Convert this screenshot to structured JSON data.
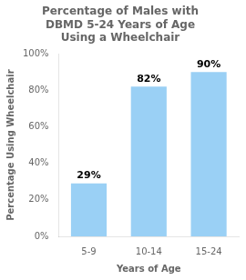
{
  "chart_data": {
    "type": "bar",
    "title": "Percentage of Males with\nDBMD 5-24 Years of Age\nUsing a Wheelchair",
    "categories": [
      "5-9",
      "10-14",
      "15-24"
    ],
    "values": [
      29,
      82,
      90
    ],
    "value_labels": [
      "29%",
      "82%",
      "90%"
    ],
    "data_labels": true,
    "xlabel": "Years of Age",
    "ylabel": "Percentage Using Wheelchair",
    "ylim": [
      0,
      100
    ],
    "yticks": [
      {
        "value": 0,
        "label": "0%"
      },
      {
        "value": 20,
        "label": "20%"
      },
      {
        "value": 40,
        "label": "40%"
      },
      {
        "value": 60,
        "label": "60%"
      },
      {
        "value": 80,
        "label": "80%"
      },
      {
        "value": 100,
        "label": "100%"
      }
    ],
    "grid": false
  }
}
